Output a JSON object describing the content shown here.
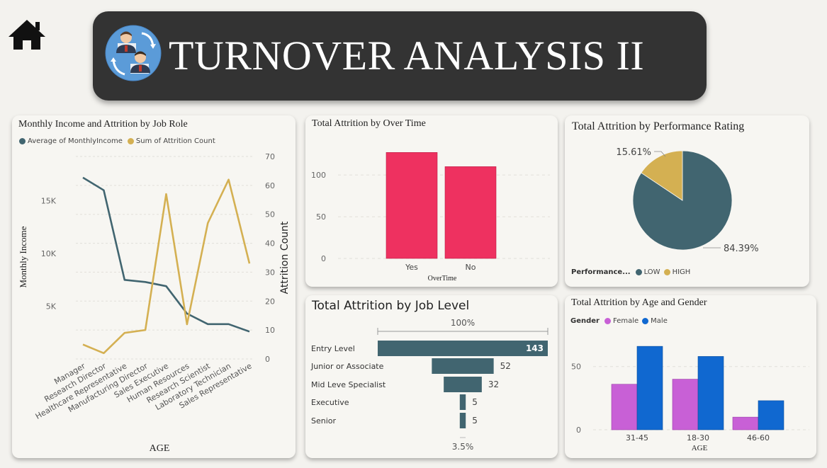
{
  "header": {
    "title": "TURNOVER ANALYSIS II",
    "home_icon": "home-icon",
    "logo_icon": "people-exchange-icon"
  },
  "colors": {
    "teal": "#416570",
    "gold": "#d4b052",
    "pink": "#ee3160",
    "magenta": "#c860d6",
    "blue": "#1068d0",
    "banner": "#333333"
  },
  "cards": {
    "income": {
      "title": "Monthly Income and Attrition by Job Role",
      "legend": [
        "Average of MonthlyIncome",
        "Sum of Attrition Count"
      ]
    },
    "overtime": {
      "title": "Total Attrition by Over Time"
    },
    "performance": {
      "title": "Total Attrition by Performance Rating",
      "legend_label": "Performance...",
      "legend": [
        "LOW",
        "HIGH"
      ]
    },
    "joblevel": {
      "title": "Total Attrition by Job Level"
    },
    "agegender": {
      "title": "Total Attrition by Age and Gender",
      "legend_label": "Gender",
      "legend": [
        "Female",
        "Male"
      ]
    }
  },
  "chart_data": [
    {
      "id": "income",
      "type": "line",
      "title": "Monthly Income and Attrition by Job Role",
      "categories": [
        "Manager",
        "Research Director",
        "Healthcare Representative",
        "Manufacturing Director",
        "Sales Executive",
        "Human Resources",
        "Research Scientist",
        "Laboratory Technician",
        "Sales Representative"
      ],
      "series": [
        {
          "name": "Average of MonthlyIncome",
          "axis": "left",
          "values": [
            17200,
            16000,
            7500,
            7300,
            6900,
            4300,
            3300,
            3300,
            2600
          ]
        },
        {
          "name": "Sum of Attrition Count",
          "axis": "right",
          "values": [
            5,
            2,
            9,
            10,
            57,
            12,
            47,
            62,
            33
          ]
        }
      ],
      "xlabel": "AGE",
      "ylabel": "Monthly Income",
      "y2label": "Attrition Count",
      "yticks": [
        "5K",
        "10K",
        "15K"
      ],
      "ytick_values": [
        5000,
        10000,
        15000
      ],
      "ylim": [
        0,
        19200
      ],
      "y2ticks": [
        0,
        10,
        20,
        30,
        40,
        50,
        60,
        70
      ],
      "y2lim": [
        0,
        70
      ]
    },
    {
      "id": "overtime",
      "type": "bar",
      "title": "Total Attrition by Over Time",
      "categories": [
        "Yes",
        "No"
      ],
      "values": [
        127,
        110
      ],
      "xlabel": "OverTime",
      "yticks": [
        0,
        50,
        100
      ],
      "ylim": [
        0,
        140
      ]
    },
    {
      "id": "performance",
      "type": "pie",
      "title": "Total Attrition by Performance Rating",
      "labels": [
        "LOW",
        "HIGH"
      ],
      "values": [
        84.39,
        15.61
      ],
      "value_labels": [
        "84.39%",
        "15.61%"
      ]
    },
    {
      "id": "joblevel",
      "type": "bar",
      "title": "Total Attrition by Job Level",
      "categories": [
        "Entry Level",
        "Junior or Associate",
        "Mid Leve Specialist",
        "Executive",
        "Senior"
      ],
      "values": [
        143,
        52,
        32,
        5,
        5
      ],
      "top_label": "100%",
      "bottom_label": "3.5%"
    },
    {
      "id": "agegender",
      "type": "bar",
      "title": "Total Attrition by Age and Gender",
      "categories": [
        "31-45",
        "18-30",
        "46-60"
      ],
      "series": [
        {
          "name": "Female",
          "values": [
            36,
            40,
            10
          ]
        },
        {
          "name": "Male",
          "values": [
            66,
            58,
            23
          ]
        }
      ],
      "xlabel": "AGE",
      "yticks": [
        0,
        50
      ],
      "ylim": [
        0,
        70
      ]
    }
  ]
}
